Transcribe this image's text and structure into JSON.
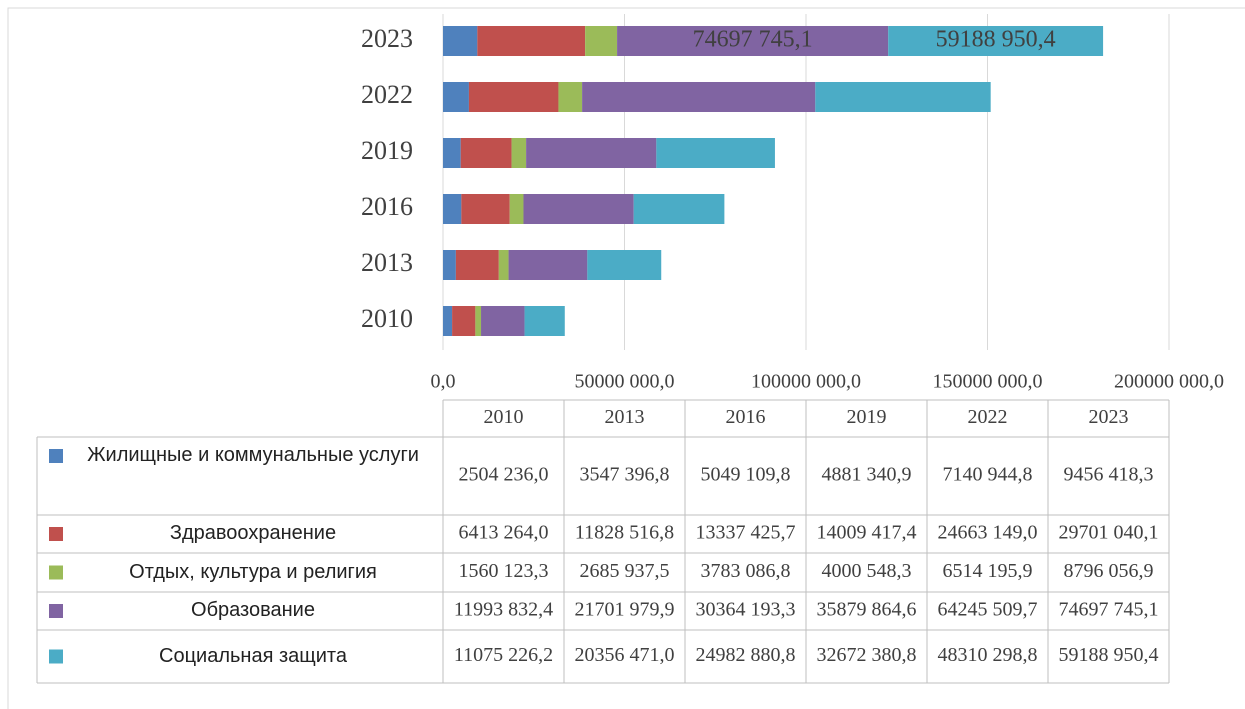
{
  "chart_data": {
    "type": "bar",
    "orientation": "horizontal",
    "stacked": true,
    "categories": [
      "2010",
      "2013",
      "2016",
      "2019",
      "2022",
      "2023"
    ],
    "series": [
      {
        "name": "Жилищные и коммунальные услуги",
        "color": "#4f81bd",
        "values": [
          2504236.0,
          3547396.8,
          5049109.8,
          4881340.9,
          7140944.8,
          9456418.3
        ],
        "value_labels": [
          "2504 236,0",
          "3547 396,8",
          "5049 109,8",
          "4881 340,9",
          "7140 944,8",
          "9456 418,3"
        ]
      },
      {
        "name": "Здравоохранение",
        "color": "#c0504d",
        "values": [
          6413264.0,
          11828516.8,
          13337425.7,
          14009417.4,
          24663149.0,
          29701040.1
        ],
        "value_labels": [
          "6413 264,0",
          "11828 516,8",
          "13337 425,7",
          "14009 417,4",
          "24663 149,0",
          "29701 040,1"
        ]
      },
      {
        "name": "Отдых, культура и религия",
        "color": "#9bbb59",
        "values": [
          1560123.3,
          2685937.5,
          3783086.8,
          4000548.3,
          6514195.9,
          8796056.9
        ],
        "value_labels": [
          "1560 123,3",
          "2685 937,5",
          "3783 086,8",
          "4000 548,3",
          "6514 195,9",
          "8796 056,9"
        ]
      },
      {
        "name": "Образование",
        "color": "#8064a2",
        "values": [
          11993832.4,
          21701979.9,
          30364193.3,
          35879864.6,
          64245509.7,
          74697745.1
        ],
        "value_labels": [
          "11993 832,4",
          "21701 979,9",
          "30364 193,3",
          "35879 864,6",
          "64245 509,7",
          "74697 745,1"
        ]
      },
      {
        "name": "Социальная защита",
        "color": "#4bacc6",
        "values": [
          11075226.2,
          20356471.0,
          24982880.8,
          32672380.8,
          48310298.8,
          59188950.4
        ],
        "value_labels": [
          "11075 226,2",
          "20356 471,0",
          "24982 880,8",
          "32672 380,8",
          "48310 298,8",
          "59188 950,4"
        ]
      }
    ],
    "xlim": [
      0,
      200000000
    ],
    "xticks": [
      {
        "value": 0,
        "label": "0,0"
      },
      {
        "value": 50000000,
        "label": "50000 000,0"
      },
      {
        "value": 100000000,
        "label": "100000 000,0"
      },
      {
        "value": 150000000,
        "label": "150000 000,0"
      },
      {
        "value": 200000000,
        "label": "200000 000,0"
      }
    ],
    "grid": true,
    "legend": "data-table"
  }
}
